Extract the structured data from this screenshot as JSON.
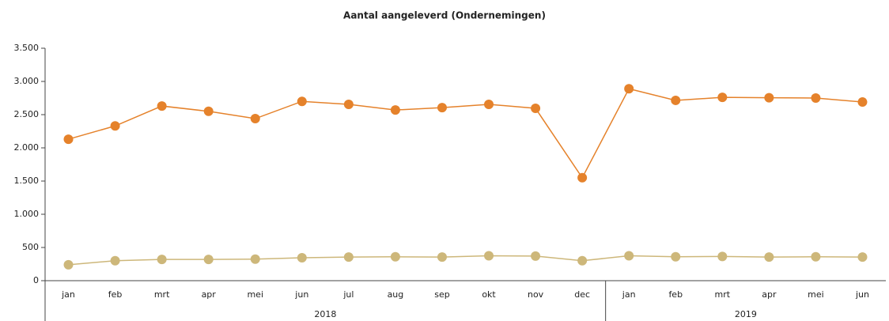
{
  "chart_data": {
    "type": "line",
    "title": "Aantal aangeleverd (Ondernemingen)",
    "groups": [
      {
        "label": "2018",
        "categories": [
          "jan",
          "feb",
          "mrt",
          "apr",
          "mei",
          "jun",
          "jul",
          "aug",
          "sep",
          "okt",
          "nov",
          "dec"
        ]
      },
      {
        "label": "2019",
        "categories": [
          "jan",
          "feb",
          "mrt",
          "apr",
          "mei",
          "jun"
        ]
      }
    ],
    "series": [
      {
        "color": "#e5822b",
        "values": [
          2130,
          2330,
          2630,
          2550,
          2440,
          2700,
          2655,
          2570,
          2605,
          2655,
          2595,
          1550,
          2890,
          2715,
          2760,
          2755,
          2750,
          2690
        ]
      },
      {
        "color": "#cdb77a",
        "values": [
          240,
          300,
          320,
          320,
          325,
          345,
          355,
          360,
          355,
          375,
          370,
          300,
          375,
          360,
          365,
          355,
          360,
          355
        ]
      }
    ],
    "ylim": [
      0,
      3500
    ],
    "yticks": [
      0,
      500,
      {
        "value": 1000,
        "label": "1.000"
      },
      {
        "value": 1500,
        "label": "1.500"
      },
      {
        "value": 2000,
        "label": "2.000"
      },
      {
        "value": 2500,
        "label": "2.500"
      },
      {
        "value": 3000,
        "label": "3.000"
      },
      {
        "value": 3500,
        "label": "3.500"
      }
    ],
    "grid": false
  }
}
